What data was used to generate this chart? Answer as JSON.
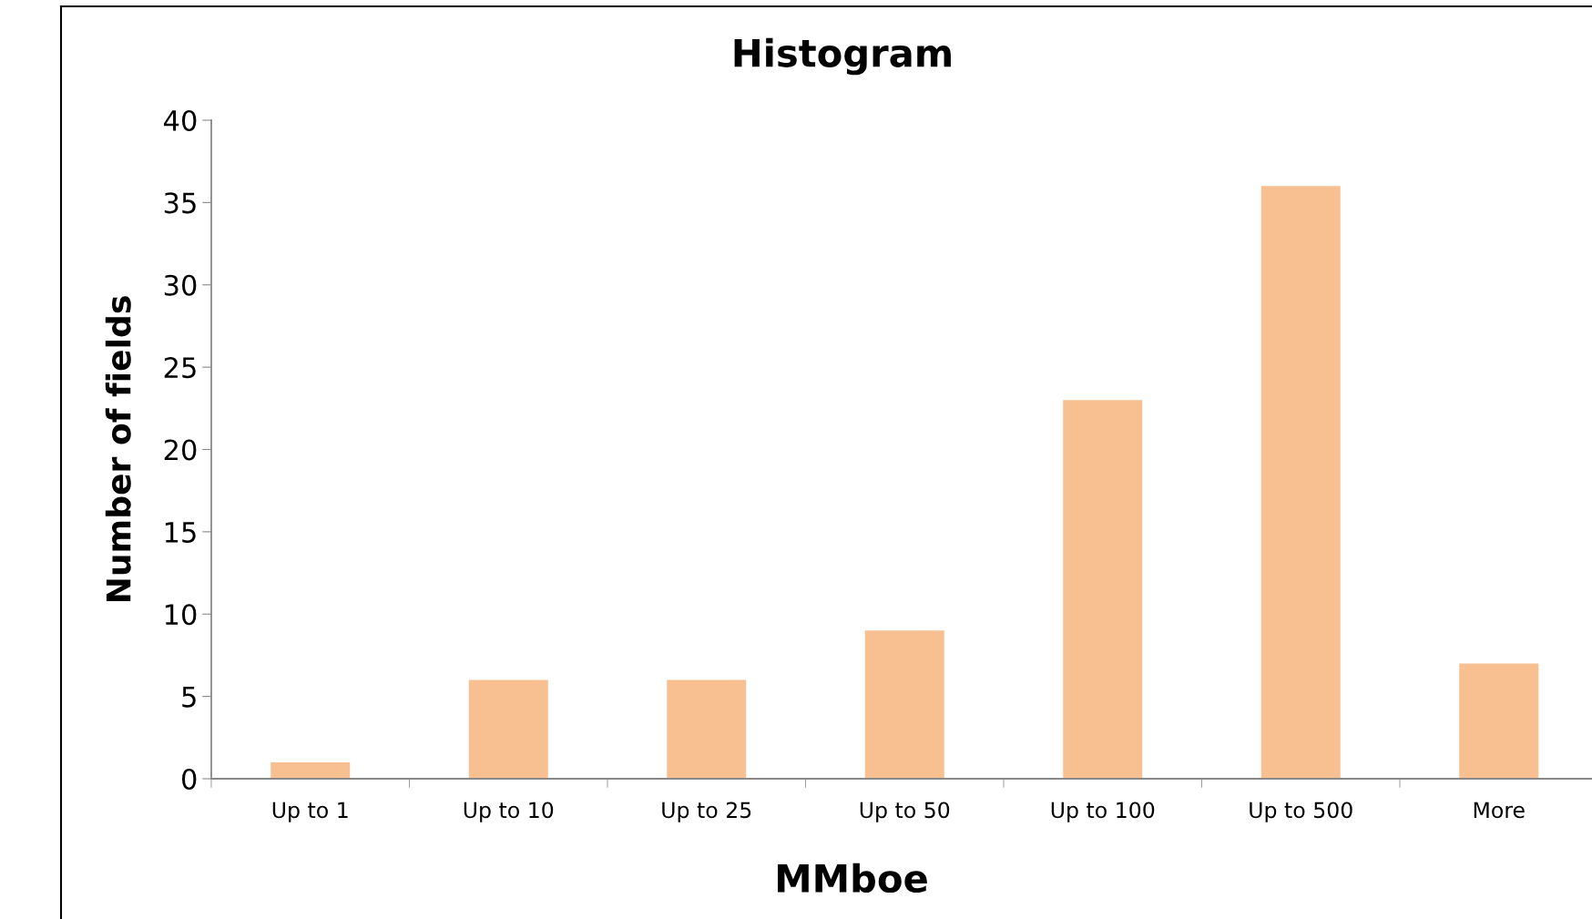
{
  "chart_data": {
    "type": "bar",
    "title": "Histogram",
    "xlabel": "MMboe",
    "ylabel": "Number of fields",
    "categories": [
      "Up to 1",
      "Up to 10",
      "Up to 25",
      "Up to 50",
      "Up to 100",
      "Up to 500",
      "More"
    ],
    "values": [
      1,
      6,
      6,
      9,
      23,
      36,
      7
    ],
    "color": "#f8c090",
    "ylim": [
      0,
      40
    ],
    "yticks": [
      0,
      5,
      10,
      15,
      20,
      25,
      30,
      35,
      40
    ],
    "grid": false,
    "legend": false
  }
}
